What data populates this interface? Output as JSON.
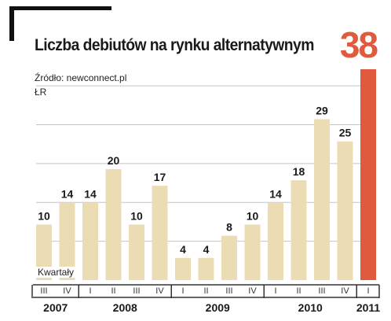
{
  "chart_data": {
    "type": "bar",
    "title": "Liczba debiutów na rynku alternatywnym",
    "source": "Źródło: newconnect.pl",
    "unit": "ŁR",
    "xlabel": "Kwartały",
    "headline_value": "38",
    "categories": [
      "III",
      "IV",
      "I",
      "II",
      "III",
      "IV",
      "I",
      "II",
      "III",
      "IV",
      "I",
      "II",
      "III",
      "IV",
      "I"
    ],
    "years": [
      {
        "label": "2007",
        "quarters": 2
      },
      {
        "label": "2008",
        "quarters": 4
      },
      {
        "label": "2009",
        "quarters": 4
      },
      {
        "label": "2010",
        "quarters": 4
      },
      {
        "label": "2011",
        "quarters": 1
      }
    ],
    "values": [
      10,
      14,
      14,
      20,
      10,
      17,
      4,
      4,
      8,
      10,
      14,
      18,
      29,
      25,
      38
    ],
    "data_labels": [
      "10",
      "14",
      "14",
      "20",
      "10",
      "17",
      "4",
      "4",
      "8",
      "10",
      "14",
      "18",
      "29",
      "25",
      ""
    ],
    "highlight_index": 14,
    "ylim": [
      0,
      38
    ],
    "grid": true,
    "colors": {
      "bar": "#ecdcb4",
      "highlight": "#e05a3e",
      "grid": "#c4c4c4",
      "axis": "#333333"
    }
  }
}
